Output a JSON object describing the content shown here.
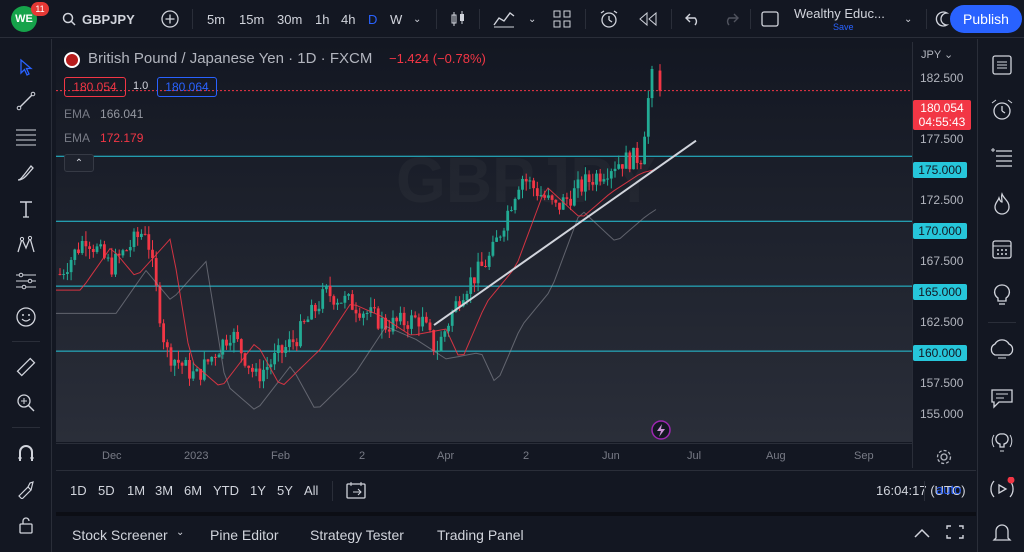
{
  "topbar": {
    "logo_text": "WE",
    "notifications": "11",
    "symbol": "GBPJPY",
    "intervals": [
      "5m",
      "15m",
      "30m",
      "1h",
      "4h",
      "D",
      "W"
    ],
    "active_interval": "D",
    "layout_name": "Wealthy Educ...",
    "layout_status": "Save",
    "publish_label": "Publish"
  },
  "legend": {
    "title": "British Pound / Japanese Yen · 1D · FXCM",
    "change": "−1.424 (−0.78%)",
    "sell_price": "180.054",
    "spread": "1.0",
    "buy_price": "180.064",
    "ema1_label": "EMA",
    "ema1_value": "166.041",
    "ema2_label": "EMA",
    "ema2_value": "172.179"
  },
  "price_axis": {
    "currency": "JPY",
    "labels": [
      "182.500",
      "177.500",
      "172.500",
      "167.500",
      "162.500",
      "157.500",
      "155.000"
    ],
    "horizontal_levels": [
      "175.000",
      "170.000",
      "165.000",
      "160.000"
    ],
    "current_price": "180.054",
    "countdown": "04:55:43"
  },
  "time_axis": {
    "labels": [
      "Dec",
      "2023",
      "Feb",
      "2",
      "Apr",
      "2",
      "Jun",
      "Jul",
      "Aug",
      "Sep"
    ]
  },
  "range_bar": {
    "ranges": [
      "1D",
      "5D",
      "1M",
      "3M",
      "6M",
      "YTD",
      "1Y",
      "5Y",
      "All"
    ],
    "clock": "16:04:17 (UTC)",
    "auto_label": "auto"
  },
  "panel_bar": {
    "tabs": [
      "Stock Screener",
      "Pine Editor",
      "Strategy Tester",
      "Trading Panel"
    ]
  },
  "colors": {
    "up": "#22ab94",
    "down": "#f23645",
    "levels": "#26c6da",
    "accent": "#2962ff",
    "ema_slow": "#9598a1",
    "ema_fast": "#f23645",
    "trendline": "#d1d4dc"
  },
  "icons": {
    "left": [
      "cursor-icon",
      "trendline-icon",
      "fib-icon",
      "brush-icon",
      "text-icon",
      "pattern-icon",
      "prediction-icon",
      "emoji-icon",
      "ruler-icon",
      "zoom-icon",
      "magnet-icon",
      "lock-drawing-icon",
      "lock-icon"
    ],
    "right": [
      "watchlist-icon",
      "alerts-icon",
      "data-window-icon",
      "hotlist-icon",
      "calendar-icon",
      "ideas-icon",
      "chats-icon",
      "messages-icon",
      "streams-icon",
      "broadcast-icon",
      "notifications-icon"
    ]
  }
}
